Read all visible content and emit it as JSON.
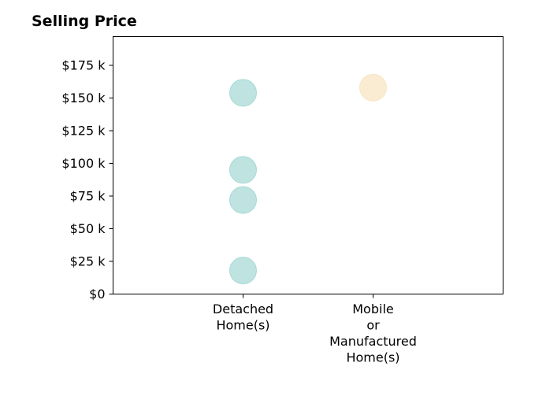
{
  "chart_data": {
    "type": "scatter",
    "title": "Selling Price",
    "xlabel": "",
    "ylabel": "",
    "categories": [
      [
        "Detached",
        "Home(s)"
      ],
      [
        "Mobile",
        "or",
        "Manufactured",
        "Home(s)"
      ]
    ],
    "xlim": [
      0,
      3
    ],
    "ylim": [
      0,
      197000
    ],
    "yticks": [
      0,
      25000,
      50000,
      75000,
      100000,
      125000,
      150000,
      175000
    ],
    "ytick_labels": [
      "$0",
      "$25 k",
      "$50 k",
      "$75 k",
      "$100 k",
      "$125 k",
      "$150 k",
      "$175 k"
    ],
    "grid": false,
    "series": [
      {
        "category_index": 0,
        "color": "#a8dad6",
        "values": [
          154000,
          95000,
          72000,
          18000
        ]
      },
      {
        "category_index": 1,
        "color": "#f7e6c4",
        "values": [
          158000
        ]
      }
    ]
  }
}
